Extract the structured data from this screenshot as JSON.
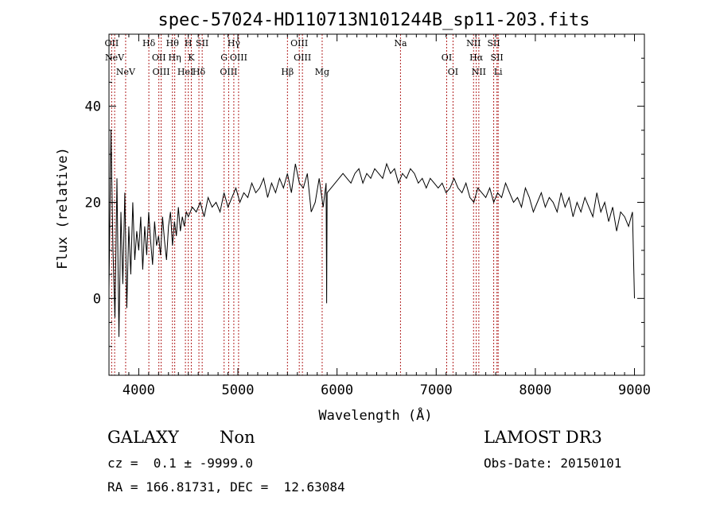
{
  "chart_data": {
    "type": "line",
    "title": "spec-57024-HD110713N101244B_sp11-203.fits",
    "xlabel": "Wavelength (Å)",
    "ylabel": "Flux (relative)",
    "xlim": [
      3700,
      9100
    ],
    "ylim": [
      -16,
      55
    ],
    "xticks": [
      4000,
      5000,
      6000,
      7000,
      8000,
      9000
    ],
    "yticks": [
      0,
      20,
      40
    ],
    "xtick_labels": [
      "4000",
      "5000",
      "6000",
      "7000",
      "8000",
      "9000"
    ],
    "ytick_labels": [
      "0",
      "20",
      "40"
    ],
    "line_color": "#000000",
    "marker_color": "#b22222",
    "series": [
      {
        "x": [
          3700,
          3720,
          3740,
          3760,
          3780,
          3800,
          3820,
          3840,
          3860,
          3880,
          3900,
          3920,
          3940,
          3960,
          3980,
          4000,
          4020,
          4040,
          4060,
          4080,
          4100,
          4120,
          4140,
          4160,
          4180,
          4200,
          4220,
          4240,
          4260,
          4280,
          4300,
          4320,
          4340,
          4360,
          4380,
          4400,
          4420,
          4440,
          4460,
          4480,
          4500,
          4540,
          4580,
          4620,
          4660,
          4700,
          4740,
          4780,
          4820,
          4860,
          4900,
          4940,
          4980,
          5020,
          5060,
          5100,
          5140,
          5180,
          5220,
          5260,
          5300,
          5340,
          5380,
          5420,
          5460,
          5500,
          5540,
          5580,
          5620,
          5660,
          5700,
          5740,
          5780,
          5820,
          5860,
          5890,
          5895,
          5900,
          5940,
          5980,
          6020,
          6060,
          6100,
          6140,
          6180,
          6220,
          6260,
          6300,
          6340,
          6380,
          6420,
          6460,
          6500,
          6540,
          6580,
          6620,
          6660,
          6700,
          6740,
          6780,
          6820,
          6860,
          6900,
          6940,
          6980,
          7020,
          7060,
          7100,
          7140,
          7180,
          7220,
          7260,
          7300,
          7340,
          7380,
          7420,
          7460,
          7500,
          7540,
          7580,
          7620,
          7660,
          7700,
          7740,
          7780,
          7820,
          7860,
          7900,
          7940,
          7980,
          8020,
          8060,
          8100,
          8140,
          8180,
          8220,
          8260,
          8300,
          8340,
          8380,
          8420,
          8460,
          8500,
          8540,
          8580,
          8620,
          8660,
          8700,
          8740,
          8780,
          8820,
          8860,
          8900,
          8940,
          8980,
          9000
        ],
        "y": [
          2,
          35,
          10,
          -4,
          25,
          -8,
          18,
          3,
          22,
          -2,
          15,
          5,
          20,
          8,
          14,
          10,
          17,
          6,
          15,
          9,
          18,
          12,
          7,
          16,
          11,
          13,
          9,
          17,
          12,
          8,
          15,
          18,
          11,
          16,
          13,
          19,
          14,
          17,
          15,
          18,
          17,
          19,
          18,
          20,
          17,
          21,
          19,
          20,
          18,
          22,
          19,
          21,
          23,
          20,
          22,
          21,
          24,
          22,
          23,
          25,
          21,
          24,
          22,
          25,
          23,
          26,
          22,
          28,
          24,
          23,
          26,
          18,
          20,
          25,
          19,
          24,
          -1,
          22,
          23,
          24,
          25,
          26,
          25,
          24,
          26,
          27,
          24,
          26,
          25,
          27,
          26,
          25,
          28,
          26,
          27,
          24,
          26,
          25,
          27,
          26,
          24,
          25,
          23,
          25,
          24,
          23,
          24,
          22,
          23,
          25,
          23,
          22,
          24,
          21,
          20,
          23,
          22,
          21,
          23,
          20,
          22,
          21,
          24,
          22,
          20,
          21,
          19,
          23,
          21,
          18,
          20,
          22,
          19,
          21,
          20,
          18,
          22,
          19,
          21,
          17,
          20,
          18,
          21,
          19,
          17,
          22,
          18,
          20,
          16,
          19,
          14,
          18,
          17,
          15,
          18,
          0
        ]
      }
    ],
    "lines": [
      {
        "x": 3727,
        "label": "OII"
      },
      {
        "x": 3757,
        "label": "NeV"
      },
      {
        "x": 3868,
        "label": "NeV"
      },
      {
        "x": 4102,
        "label": "Hδ"
      },
      {
        "x": 4203,
        "label": "OII"
      },
      {
        "x": 4226,
        "label": "OIII"
      },
      {
        "x": 4340,
        "label": "Hθ"
      },
      {
        "x": 4363,
        "label": "Hη"
      },
      {
        "x": 4471,
        "label": "HeI"
      },
      {
        "x": 4500,
        "label": "H"
      },
      {
        "x": 4530,
        "label": "K"
      },
      {
        "x": 4607,
        "label": "Hδ"
      },
      {
        "x": 4640,
        "label": "SII"
      },
      {
        "x": 4861,
        "label": "G"
      },
      {
        "x": 4907,
        "label": "OIII"
      },
      {
        "x": 4959,
        "label": "Hγ"
      },
      {
        "x": 5007,
        "label": "OIII"
      },
      {
        "x": 5500,
        "label": "Hβ"
      },
      {
        "x": 5619,
        "label": "OIII"
      },
      {
        "x": 5651,
        "label": "OIII"
      },
      {
        "x": 5850,
        "label": "Mg"
      },
      {
        "x": 6640,
        "label": "Na"
      },
      {
        "x": 7106,
        "label": "OI"
      },
      {
        "x": 7170,
        "label": "OI"
      },
      {
        "x": 7377,
        "label": "NII"
      },
      {
        "x": 7404,
        "label": "Hα"
      },
      {
        "x": 7430,
        "label": "NII"
      },
      {
        "x": 7580,
        "label": "SII"
      },
      {
        "x": 7613,
        "label": "SII"
      },
      {
        "x": 7625,
        "label": "Li"
      }
    ]
  },
  "info": {
    "object_class": "GALAXY",
    "subclass": "Non",
    "survey": "LAMOST DR3",
    "redshift": "cz =  0.1 ± -9999.0",
    "obs_date": "Obs-Date: 20150101",
    "coords": "RA = 166.81731, DEC =  12.63084"
  }
}
